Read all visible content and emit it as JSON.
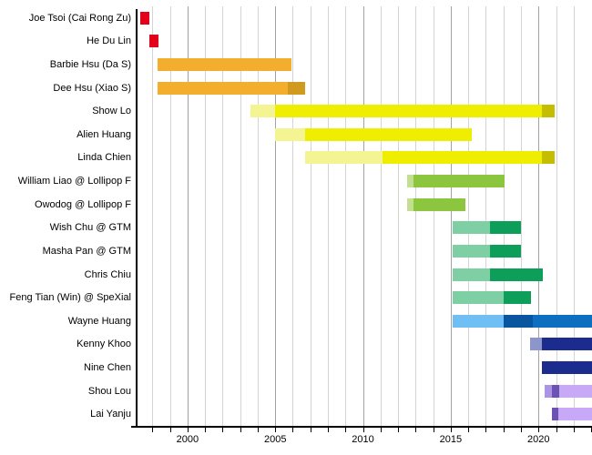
{
  "chart_data": {
    "type": "bar",
    "variant": "gantt-timeline",
    "title": "",
    "xlabel": "",
    "ylabel": "",
    "legend": null,
    "x_axis": {
      "min": 1997.1,
      "max": 2023.05,
      "minor_tick_step": 1,
      "major_tick_step": 5,
      "major_tick_labels": [
        "2000",
        "2005",
        "2010",
        "2015",
        "2020"
      ],
      "grid": true
    },
    "colors": {
      "red": "#e3001a",
      "orange": "#f2ae2c",
      "orange_dark": "#cf9a1d",
      "yellow_light": "#f4f492",
      "yellow": "#f0ee00",
      "yellow_dark": "#c4bd00",
      "green_light": "#c3df90",
      "green": "#8cc63e",
      "teal_light": "#7ecfa4",
      "teal": "#0d9e5a",
      "sky": "#6fbef4",
      "blue_dark": "#0a55a0",
      "blue": "#0e6fc0",
      "slate": "#8c96cb",
      "navy": "#1b2b8e",
      "purple_med": "#ab93e6",
      "purple_dark": "#6b52b3",
      "lavender": "#c7a9f8"
    },
    "rows": [
      {
        "label": "Joe Tsoi (Cai Rong Zu)",
        "segments": [
          {
            "start": 1997.3,
            "end": 1997.85,
            "color": "red"
          }
        ]
      },
      {
        "label": "He Du Lin",
        "segments": [
          {
            "start": 1997.85,
            "end": 1998.35,
            "color": "red"
          }
        ]
      },
      {
        "label": "Barbie Hsu (Da S)",
        "segments": [
          {
            "start": 1998.3,
            "end": 2005.9,
            "color": "orange"
          }
        ]
      },
      {
        "label": "Dee Hsu (Xiao S)",
        "segments": [
          {
            "start": 1998.3,
            "end": 2005.7,
            "color": "orange"
          },
          {
            "start": 2005.7,
            "end": 2006.7,
            "color": "orange_dark"
          }
        ]
      },
      {
        "label": "Show Lo",
        "segments": [
          {
            "start": 2003.6,
            "end": 2005.0,
            "color": "yellow_light"
          },
          {
            "start": 2005.0,
            "end": 2020.2,
            "color": "yellow"
          },
          {
            "start": 2020.2,
            "end": 2020.9,
            "color": "yellow_dark"
          }
        ]
      },
      {
        "label": "Alien Huang",
        "segments": [
          {
            "start": 2005.0,
            "end": 2006.7,
            "color": "yellow_light"
          },
          {
            "start": 2006.7,
            "end": 2016.2,
            "color": "yellow"
          }
        ]
      },
      {
        "label": "Linda Chien",
        "segments": [
          {
            "start": 2006.7,
            "end": 2011.1,
            "color": "yellow_light"
          },
          {
            "start": 2011.1,
            "end": 2020.2,
            "color": "yellow"
          },
          {
            "start": 2020.2,
            "end": 2020.9,
            "color": "yellow_dark"
          }
        ]
      },
      {
        "label": "William Liao @ Lollipop F",
        "segments": [
          {
            "start": 2012.5,
            "end": 2012.9,
            "color": "green_light"
          },
          {
            "start": 2012.9,
            "end": 2018.05,
            "color": "green"
          }
        ]
      },
      {
        "label": "Owodog @ Lollipop F",
        "segments": [
          {
            "start": 2012.5,
            "end": 2012.9,
            "color": "green_light"
          },
          {
            "start": 2012.9,
            "end": 2015.85,
            "color": "green"
          }
        ]
      },
      {
        "label": "Wish Chu @ GTM",
        "segments": [
          {
            "start": 2015.1,
            "end": 2017.25,
            "color": "teal_light"
          },
          {
            "start": 2017.25,
            "end": 2019.0,
            "color": "teal"
          }
        ]
      },
      {
        "label": "Masha Pan @ GTM",
        "segments": [
          {
            "start": 2015.1,
            "end": 2017.25,
            "color": "teal_light"
          },
          {
            "start": 2017.25,
            "end": 2019.0,
            "color": "teal"
          }
        ]
      },
      {
        "label": "Chris Chiu",
        "segments": [
          {
            "start": 2015.1,
            "end": 2017.25,
            "color": "teal_light"
          },
          {
            "start": 2017.25,
            "end": 2020.25,
            "color": "teal"
          }
        ]
      },
      {
        "label": "Feng Tian (Win) @ SpeXial",
        "segments": [
          {
            "start": 2015.1,
            "end": 2018.0,
            "color": "teal_light"
          },
          {
            "start": 2018.0,
            "end": 2019.55,
            "color": "teal"
          }
        ]
      },
      {
        "label": "Wayne Huang",
        "segments": [
          {
            "start": 2015.1,
            "end": 2018.0,
            "color": "sky"
          },
          {
            "start": 2018.0,
            "end": 2019.7,
            "color": "blue_dark"
          },
          {
            "start": 2019.7,
            "end": 2023.05,
            "color": "blue"
          }
        ]
      },
      {
        "label": "Kenny Khoo",
        "segments": [
          {
            "start": 2019.5,
            "end": 2020.2,
            "color": "slate"
          },
          {
            "start": 2020.2,
            "end": 2023.05,
            "color": "navy"
          }
        ]
      },
      {
        "label": "Nine Chen",
        "segments": [
          {
            "start": 2020.2,
            "end": 2023.05,
            "color": "navy"
          }
        ]
      },
      {
        "label": "Shou Lou",
        "segments": [
          {
            "start": 2020.35,
            "end": 2020.75,
            "color": "purple_med"
          },
          {
            "start": 2020.75,
            "end": 2021.2,
            "color": "purple_dark"
          },
          {
            "start": 2021.2,
            "end": 2023.05,
            "color": "lavender"
          }
        ]
      },
      {
        "label": "Lai Yanju",
        "segments": [
          {
            "start": 2020.75,
            "end": 2021.15,
            "color": "purple_dark"
          },
          {
            "start": 2021.15,
            "end": 2023.05,
            "color": "lavender"
          }
        ]
      }
    ]
  }
}
